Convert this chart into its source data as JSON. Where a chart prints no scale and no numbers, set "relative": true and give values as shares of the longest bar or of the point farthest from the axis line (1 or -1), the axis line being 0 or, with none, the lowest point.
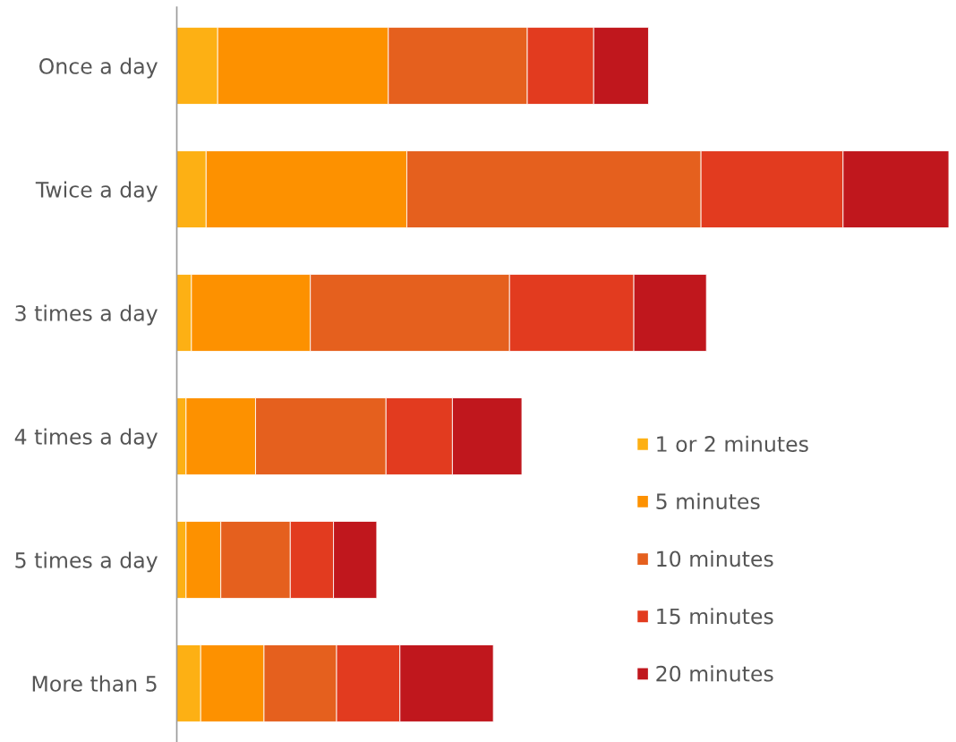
{
  "chart_data": {
    "type": "bar",
    "orientation": "horizontal",
    "stacked": true,
    "relative": true,
    "categories": [
      "Once a day",
      "Twice a day",
      "3 times a day",
      "4 times a day",
      "5 times a day",
      "More than 5"
    ],
    "series": [
      {
        "name": "1 or 2 minutes",
        "color": "#fdb014",
        "values": [
          0.053,
          0.038,
          0.019,
          0.012,
          0.012,
          0.031
        ]
      },
      {
        "name": "5 minutes",
        "color": "#fd9100",
        "values": [
          0.221,
          0.26,
          0.154,
          0.09,
          0.045,
          0.082
        ]
      },
      {
        "name": "10 minutes",
        "color": "#e5601e",
        "values": [
          0.18,
          0.381,
          0.258,
          0.169,
          0.09,
          0.094
        ]
      },
      {
        "name": "15 minutes",
        "color": "#e23b1f",
        "values": [
          0.086,
          0.184,
          0.161,
          0.086,
          0.056,
          0.082
        ]
      },
      {
        "name": "20 minutes",
        "color": "#c0171d",
        "values": [
          0.071,
          0.137,
          0.094,
          0.09,
          0.056,
          0.121
        ]
      }
    ],
    "legend": "bottom right"
  }
}
